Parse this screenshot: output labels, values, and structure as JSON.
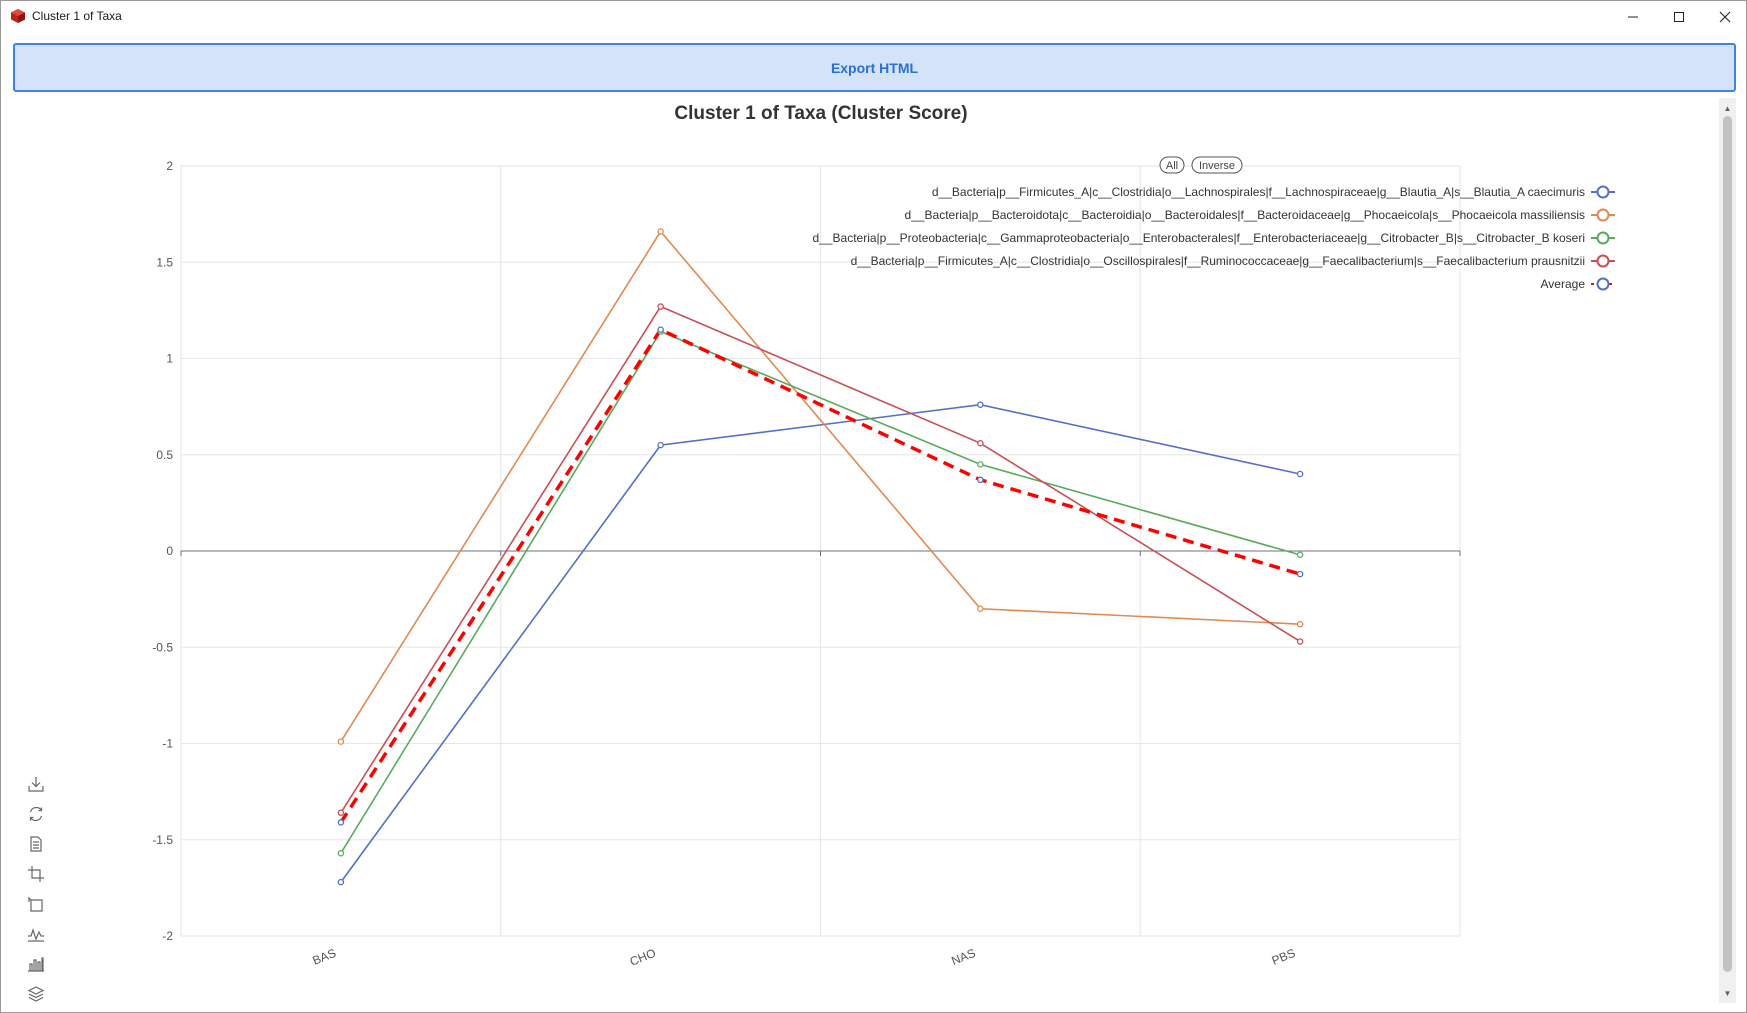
{
  "window": {
    "title": "Cluster 1 of Taxa"
  },
  "toolbar": {
    "export_label": "Export HTML"
  },
  "legend_controls": {
    "all_label": "All",
    "inverse_label": "Inverse"
  },
  "toolbox": [
    "download-icon",
    "restore-icon",
    "data-view-icon",
    "zoom-select-icon",
    "zoom-back-icon",
    "line-chart-icon",
    "bar-chart-icon",
    "stack-icon"
  ],
  "chart_data": {
    "type": "line",
    "title": "Cluster 1 of Taxa (Cluster Score)",
    "categories": [
      "BAS",
      "CHO",
      "NAS",
      "PBS"
    ],
    "ylim": [
      -2,
      2
    ],
    "yticks": [
      2,
      1.5,
      1,
      0.5,
      0,
      -0.5,
      -1,
      -1.5,
      -2
    ],
    "ytick_labels": [
      "2",
      "1.5",
      "1",
      "0.5",
      "0",
      "-0.5",
      "-1",
      "-1.5",
      "-2"
    ],
    "grid": true,
    "legend_position": "top-right",
    "series": [
      {
        "name": "d__Bacteria|p__Firmicutes_A|c__Clostridia|o__Lachnospirales|f__Lachnospiraceae|g__Blautia_A|s__Blautia_A caecimuris",
        "color": "#5470c6",
        "values": [
          -1.72,
          0.55,
          0.76,
          0.4
        ]
      },
      {
        "name": "d__Bacteria|p__Bacteroidota|c__Bacteroidia|o__Bacteroidales|f__Bacteroidaceae|g__Phocaeicola|s__Phocaeicola massiliensis",
        "color": "#e08a52",
        "values": [
          -0.99,
          1.66,
          -0.3,
          -0.38
        ]
      },
      {
        "name": "d__Bacteria|p__Proteobacteria|c__Gammaproteobacteria|o__Enterobacterales|f__Enterobacteriaceae|g__Citrobacter_B|s__Citrobacter_B koseri",
        "color": "#5aaa5e",
        "values": [
          -1.57,
          1.14,
          0.45,
          -0.02
        ]
      },
      {
        "name": "d__Bacteria|p__Firmicutes_A|c__Clostridia|o__Oscillospirales|f__Ruminococcaceae|g__Faecalibacterium|s__Faecalibacterium prausnitzii",
        "color": "#c94f55",
        "values": [
          -1.36,
          1.27,
          0.56,
          -0.47
        ]
      },
      {
        "name": "Average",
        "color": "#ff0000",
        "dashed": true,
        "symbol_color": "#5470c6",
        "values": [
          -1.41,
          1.15,
          0.37,
          -0.12
        ]
      }
    ]
  }
}
